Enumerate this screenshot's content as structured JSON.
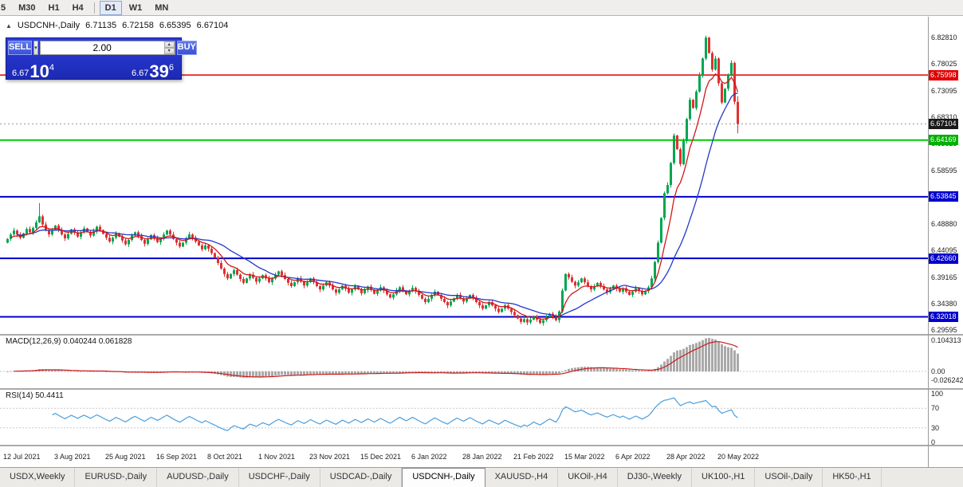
{
  "toolbar": {
    "timeframe_groups": [
      [
        "5",
        "M30",
        "H1",
        "H4"
      ],
      [
        "D1",
        "W1",
        "MN"
      ]
    ],
    "active_timeframe": "D1"
  },
  "chart_title": {
    "symbol": "USDCNH-,Daily",
    "open": "6.71135",
    "high": "6.72158",
    "low": "6.65395",
    "close": "6.67104"
  },
  "trade_widget": {
    "sell_label": "SELL",
    "buy_label": "BUY",
    "volume": "2.00",
    "sell_price": {
      "head": "6.67",
      "big": "10",
      "sup": "4"
    },
    "buy_price": {
      "head": "6.67",
      "big": "39",
      "sup": "6"
    }
  },
  "price_axis": {
    "ticks": [
      "6.82810",
      "6.78025",
      "6.73095",
      "6.68310",
      "6.63525",
      "6.58595",
      "6.48880",
      "6.44095",
      "6.39165",
      "6.34380",
      "6.29595"
    ],
    "boxes": [
      {
        "text": "6.75998",
        "bg": "#e00000"
      },
      {
        "text": "6.67104",
        "bg": "#1a1a1a"
      },
      {
        "text": "6.64169",
        "bg": "#00b000"
      },
      {
        "text": "6.53845",
        "bg": "#0000cd"
      },
      {
        "text": "6.42660",
        "bg": "#0000cd"
      },
      {
        "text": "6.32018",
        "bg": "#0000cd"
      }
    ]
  },
  "macd_panel": {
    "label": "MACD(12,26,9)",
    "values": "0.040244 0.061828",
    "axis": [
      {
        "text": "0.104313",
        "v": 0.104313
      },
      {
        "text": "0.00",
        "v": 0
      },
      {
        "text": "-0.026242",
        "v": -0.026242
      }
    ]
  },
  "rsi_panel": {
    "label": "RSI(14)",
    "value": "50.4411",
    "axis": [
      {
        "text": "100",
        "v": 100
      },
      {
        "text": "70",
        "v": 70
      },
      {
        "text": "30",
        "v": 30
      },
      {
        "text": "0",
        "v": 0
      }
    ]
  },
  "date_axis": [
    "12 Jul 2021",
    "3 Aug 2021",
    "25 Aug 2021",
    "16 Sep 2021",
    "8 Oct 2021",
    "1 Nov 2021",
    "23 Nov 2021",
    "15 Dec 2021",
    "6 Jan 2022",
    "28 Jan 2022",
    "21 Feb 2022",
    "15 Mar 2022",
    "6 Apr 2022",
    "28 Apr 2022",
    "20 May 2022"
  ],
  "tabs": {
    "items": [
      "USDX,Weekly",
      "EURUSD-,Daily",
      "AUDUSD-,Daily",
      "USDCHF-,Daily",
      "USDCAD-,Daily",
      "USDCNH-,Daily",
      "XAUUSD-,H4",
      "UKOil-,H4",
      "DJ30-,Weekly",
      "UK100-,H1",
      "USOil-,Daily",
      "HK50-,H1"
    ],
    "active": "USDCNH-,Daily"
  },
  "colors": {
    "bull": "#00a651",
    "bear": "#e03030",
    "ma_fast": "#d01818",
    "ma_slow": "#2239c8",
    "macd_hist": "#a9a9a9",
    "macd_signal": "#d01818",
    "rsi_line": "#4a9ede"
  },
  "chart_data": {
    "type": "candlestick",
    "title": "USDCNH-,Daily",
    "visible_price_range": [
      6.289,
      6.866
    ],
    "current_price": 6.67104,
    "last_bar_ohlc": [
      6.71135,
      6.72158,
      6.65395,
      6.67104
    ],
    "hlines": [
      {
        "price": 6.75998,
        "color": "#e00000",
        "width": 1.5
      },
      {
        "price": 6.64169,
        "color": "#00cc00",
        "width": 2
      },
      {
        "price": 6.53845,
        "color": "#0000cd",
        "width": 2
      },
      {
        "price": 6.4266,
        "color": "#0000cd",
        "width": 2
      },
      {
        "price": 6.32018,
        "color": "#0000cd",
        "width": 2
      }
    ],
    "indicators": {
      "macd": [
        12,
        26,
        9
      ],
      "rsi": [
        14
      ]
    },
    "date_tick_every": 16,
    "first_open": 6.455,
    "closes": [
      6.462,
      6.47,
      6.477,
      6.47,
      6.464,
      6.472,
      6.48,
      6.474,
      6.482,
      6.492,
      6.503,
      6.488,
      6.478,
      6.47,
      6.478,
      6.486,
      6.478,
      6.47,
      6.463,
      6.471,
      6.479,
      6.473,
      6.466,
      6.474,
      6.481,
      6.475,
      6.468,
      6.476,
      6.484,
      6.478,
      6.471,
      6.464,
      6.457,
      6.464,
      6.472,
      6.466,
      6.459,
      6.452,
      6.46,
      6.468,
      6.474,
      6.467,
      6.46,
      6.453,
      6.461,
      6.469,
      6.463,
      6.456,
      6.462,
      6.47,
      6.477,
      6.47,
      6.462,
      6.455,
      6.448,
      6.455,
      6.463,
      6.47,
      6.464,
      6.457,
      6.45,
      6.443,
      6.45,
      6.444,
      6.436,
      6.428,
      6.418,
      6.408,
      6.398,
      6.39,
      6.398,
      6.405,
      6.397,
      6.389,
      6.382,
      6.39,
      6.397,
      6.391,
      6.384,
      6.39,
      6.396,
      6.39,
      6.383,
      6.39,
      6.397,
      6.403,
      6.396,
      6.389,
      6.382,
      6.376,
      6.383,
      6.39,
      6.384,
      6.377,
      6.383,
      6.39,
      6.383,
      6.376,
      6.37,
      6.377,
      6.383,
      6.377,
      6.37,
      6.364,
      6.37,
      6.377,
      6.371,
      6.364,
      6.37,
      6.376,
      6.37,
      6.363,
      6.369,
      6.375,
      6.369,
      6.362,
      6.368,
      6.374,
      6.368,
      6.361,
      6.355,
      6.361,
      6.368,
      6.374,
      6.368,
      6.361,
      6.367,
      6.373,
      6.367,
      6.36,
      6.353,
      6.347,
      6.353,
      6.36,
      6.366,
      6.36,
      6.353,
      6.347,
      6.341,
      6.348,
      6.354,
      6.36,
      6.354,
      6.348,
      6.354,
      6.36,
      6.354,
      6.347,
      6.341,
      6.335,
      6.341,
      6.347,
      6.341,
      6.335,
      6.329,
      6.335,
      6.341,
      6.335,
      6.329,
      6.323,
      6.317,
      6.311,
      6.316,
      6.31,
      6.315,
      6.321,
      6.315,
      6.309,
      6.314,
      6.32,
      6.326,
      6.32,
      6.314,
      6.33,
      6.368,
      6.398,
      6.392,
      6.384,
      6.377,
      6.383,
      6.39,
      6.383,
      6.376,
      6.37,
      6.376,
      6.382,
      6.376,
      6.37,
      6.365,
      6.371,
      6.377,
      6.371,
      6.366,
      6.372,
      6.366,
      6.36,
      6.366,
      6.372,
      6.367,
      6.361,
      6.367,
      6.374,
      6.39,
      6.42,
      6.455,
      6.5,
      6.545,
      6.56,
      6.6,
      6.65,
      6.625,
      6.598,
      6.64,
      6.68,
      6.715,
      6.7,
      6.73,
      6.76,
      6.79,
      6.828,
      6.8,
      6.77,
      6.79,
      6.745,
      6.71,
      6.735,
      6.76,
      6.782,
      6.71135,
      6.67104
    ],
    "wick_overrides": [
      {
        "i": 10,
        "h": 6.527
      },
      {
        "i": 219,
        "h": 6.8315
      },
      {
        "i": 229,
        "h": 6.72158,
        "l": 6.65395
      }
    ]
  }
}
